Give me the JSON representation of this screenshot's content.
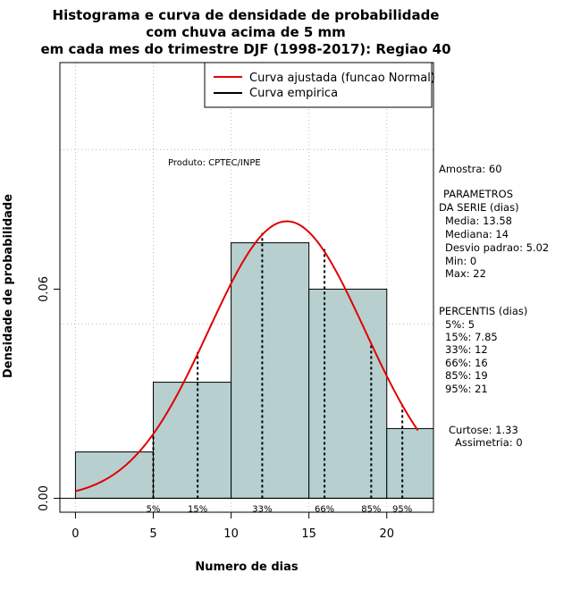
{
  "chart_data": {
    "type": "bar",
    "title": [
      "Histograma e curva de densidade de probabilidade",
      "com chuva acima de 5 mm",
      "em cada mes do trimestre DJF (1998-2017): Regiao 40"
    ],
    "xlabel": "Numero de dias",
    "ylabel": "Densidade de probabilidade",
    "xlim": [
      -1,
      23
    ],
    "ylim": [
      -0.004,
      0.125
    ],
    "x_ticks": [
      0,
      5,
      10,
      15,
      20
    ],
    "y_ticks": [
      0.0,
      0.06
    ],
    "y_tick_labels": [
      "0.00",
      "0.06"
    ],
    "grid": true,
    "grid_x": [
      0,
      5,
      10,
      15,
      20
    ],
    "grid_y": [
      0,
      0.05,
      0.1
    ],
    "histogram": {
      "bins": [
        {
          "x0": 0,
          "x1": 5,
          "density": 0.0133
        },
        {
          "x0": 5,
          "x1": 10,
          "density": 0.0333
        },
        {
          "x0": 10,
          "x1": 15,
          "density": 0.0733
        },
        {
          "x0": 15,
          "x1": 20,
          "density": 0.06
        },
        {
          "x0": 20,
          "x1": 23,
          "density": 0.02
        }
      ],
      "fill": "#b7cfcf"
    },
    "fitted_curve": {
      "name": "Curva ajustada (funcao Normal)",
      "distribution": "normal",
      "mean": 13.58,
      "sd": 5.02,
      "x_range": [
        0,
        22
      ],
      "color": "#e00000"
    },
    "empirical_curve": {
      "name": "Curva empirica",
      "color": "#000000"
    },
    "percentile_lines": [
      {
        "x": 5,
        "label": "5%",
        "height": 0.0186
      },
      {
        "x": 7.85,
        "label": "15%",
        "height": 0.042
      },
      {
        "x": 12,
        "label": "33%",
        "height": 0.0761
      },
      {
        "x": 16,
        "label": "66%",
        "height": 0.0715
      },
      {
        "x": 19,
        "label": "85%",
        "height": 0.0443
      },
      {
        "x": 21,
        "label": "95%",
        "height": 0.0268
      }
    ],
    "legend_position": "top-right",
    "annotations": {
      "credit": "Produto: CPTEC/INPE"
    }
  },
  "side_panel": {
    "amostra": "Amostra: 60",
    "param_title_1": "PARAMETROS",
    "param_title_2": "DA SERIE (dias)",
    "media": "Media: 13.58",
    "mediana": "Mediana: 14",
    "desvio": "Desvio padrao: 5.02",
    "min": "Min: 0",
    "max": "Max: 22",
    "pct_title": "PERCENTIS (dias)",
    "p5": "5%: 5",
    "p15": "15%: 7.85",
    "p33": "33%: 12",
    "p66": "66%: 16",
    "p85": "85%: 19",
    "p95": "95%: 21",
    "curtose": "Curtose: 1.33",
    "assimetria": "Assimetria: 0"
  }
}
